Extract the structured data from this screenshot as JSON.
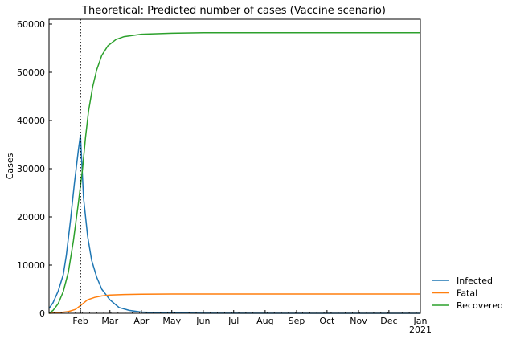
{
  "chart_data": {
    "type": "line",
    "title": "Theoretical: Predicted number of cases (Vaccine scenario)",
    "xlabel": "",
    "ylabel": "Cases",
    "x_domain": [
      "2020-01-01",
      "2021-01-01"
    ],
    "ylim": [
      0,
      61000
    ],
    "yticks": [
      0,
      10000,
      20000,
      30000,
      40000,
      50000,
      60000
    ],
    "xticks": [
      {
        "date": "2020-02-01",
        "label": "Feb"
      },
      {
        "date": "2020-03-01",
        "label": "Mar"
      },
      {
        "date": "2020-04-01",
        "label": "Apr"
      },
      {
        "date": "2020-05-01",
        "label": "May"
      },
      {
        "date": "2020-06-01",
        "label": "Jun"
      },
      {
        "date": "2020-07-01",
        "label": "Jul"
      },
      {
        "date": "2020-08-01",
        "label": "Aug"
      },
      {
        "date": "2020-09-01",
        "label": "Sep"
      },
      {
        "date": "2020-10-01",
        "label": "Oct"
      },
      {
        "date": "2020-11-01",
        "label": "Nov"
      },
      {
        "date": "2020-12-01",
        "label": "Dec"
      },
      {
        "date": "2021-01-01",
        "label": "Jan",
        "sublabel": "2021"
      }
    ],
    "vline": {
      "date": "2020-02-01",
      "style": "dotted",
      "color": "#000000"
    },
    "legend_position": "outside-right-bottom",
    "grid": false,
    "series": [
      {
        "name": "Infected",
        "color": "#1f77b4",
        "points": [
          [
            "2020-01-01",
            1000
          ],
          [
            "2020-01-05",
            2200
          ],
          [
            "2020-01-10",
            4600
          ],
          [
            "2020-01-15",
            8000
          ],
          [
            "2020-01-18",
            12000
          ],
          [
            "2020-01-22",
            19000
          ],
          [
            "2020-01-26",
            27000
          ],
          [
            "2020-01-30",
            34000
          ],
          [
            "2020-02-01",
            37000
          ],
          [
            "2020-02-04",
            24000
          ],
          [
            "2020-02-08",
            16000
          ],
          [
            "2020-02-12",
            11000
          ],
          [
            "2020-02-17",
            7500
          ],
          [
            "2020-02-22",
            5000
          ],
          [
            "2020-03-01",
            2800
          ],
          [
            "2020-03-10",
            1200
          ],
          [
            "2020-03-20",
            600
          ],
          [
            "2020-04-01",
            250
          ],
          [
            "2020-05-01",
            60
          ],
          [
            "2020-06-01",
            20
          ],
          [
            "2021-01-01",
            0
          ]
        ]
      },
      {
        "name": "Fatal",
        "color": "#ff7f0e",
        "points": [
          [
            "2020-01-01",
            0
          ],
          [
            "2020-01-10",
            100
          ],
          [
            "2020-01-20",
            350
          ],
          [
            "2020-01-27",
            800
          ],
          [
            "2020-02-01",
            1600
          ],
          [
            "2020-02-08",
            2800
          ],
          [
            "2020-02-15",
            3300
          ],
          [
            "2020-02-22",
            3600
          ],
          [
            "2020-03-01",
            3800
          ],
          [
            "2020-03-15",
            3900
          ],
          [
            "2020-04-01",
            3950
          ],
          [
            "2020-05-01",
            4000
          ],
          [
            "2021-01-01",
            4000
          ]
        ]
      },
      {
        "name": "Recovered",
        "color": "#2ca02c",
        "points": [
          [
            "2020-01-01",
            0
          ],
          [
            "2020-01-05",
            600
          ],
          [
            "2020-01-10",
            2000
          ],
          [
            "2020-01-15",
            4500
          ],
          [
            "2020-01-20",
            8500
          ],
          [
            "2020-01-25",
            15000
          ],
          [
            "2020-01-30",
            23000
          ],
          [
            "2020-02-03",
            30000
          ],
          [
            "2020-02-06",
            36500
          ],
          [
            "2020-02-09",
            42000
          ],
          [
            "2020-02-13",
            47000
          ],
          [
            "2020-02-17",
            50500
          ],
          [
            "2020-02-22",
            53500
          ],
          [
            "2020-02-28",
            55500
          ],
          [
            "2020-03-07",
            56800
          ],
          [
            "2020-03-15",
            57400
          ],
          [
            "2020-04-01",
            57900
          ],
          [
            "2020-05-01",
            58100
          ],
          [
            "2020-06-01",
            58200
          ],
          [
            "2021-01-01",
            58200
          ]
        ]
      }
    ]
  }
}
